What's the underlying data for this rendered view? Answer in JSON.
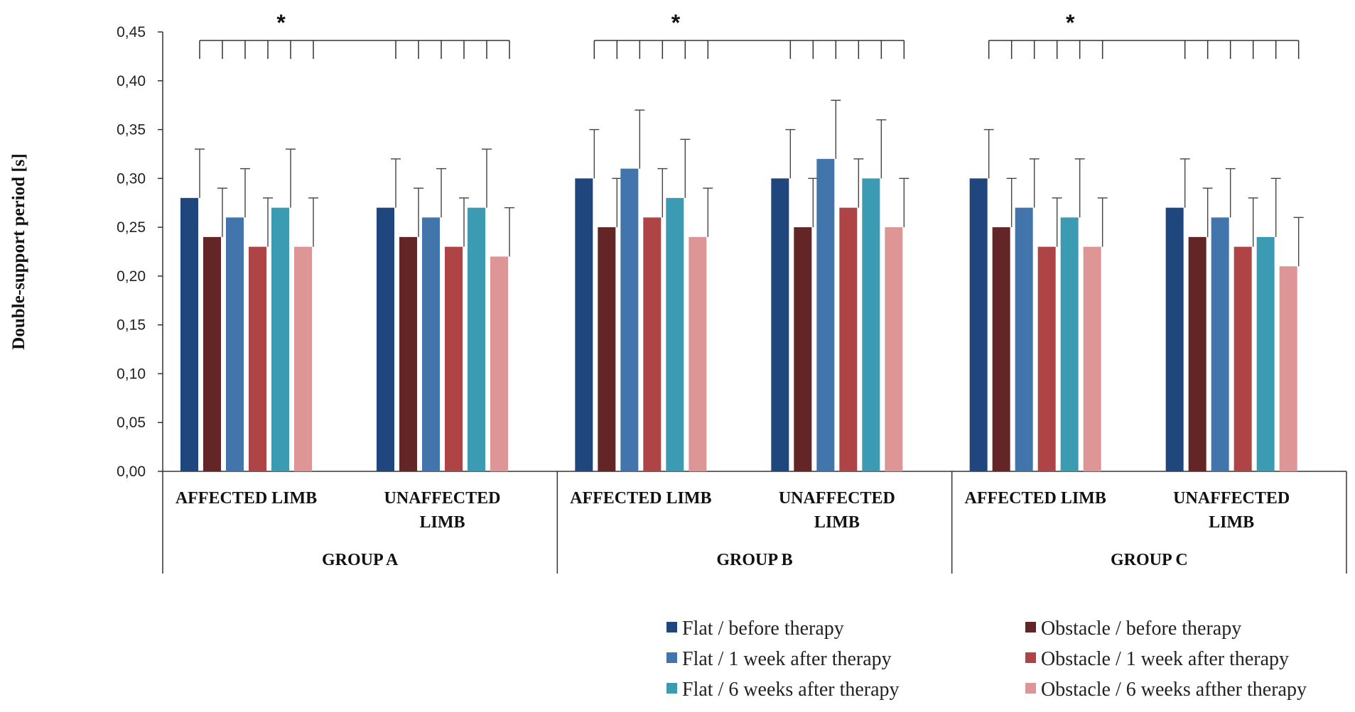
{
  "chart_data": {
    "type": "bar",
    "title": "",
    "xlabel": "",
    "ylabel": "Double-support period  [s]",
    "ylim": [
      0,
      0.45
    ],
    "yticks": [
      "0,00",
      "0,05",
      "0,10",
      "0,15",
      "0,20",
      "0,25",
      "0,30",
      "0,35",
      "0,40",
      "0,45"
    ],
    "grid": false,
    "legend_position": "bottom-right",
    "groups": [
      {
        "label": "GROUP   A",
        "significance": "*",
        "subgroups": [
          {
            "label": [
              "AFFECTED  LIMB"
            ],
            "values": [
              0.28,
              0.24,
              0.26,
              0.23,
              0.27,
              0.23
            ],
            "errors": [
              0.05,
              0.05,
              0.05,
              0.05,
              0.06,
              0.05
            ]
          },
          {
            "label": [
              "UNAFFECTED",
              "LIMB"
            ],
            "values": [
              0.27,
              0.24,
              0.26,
              0.23,
              0.27,
              0.22
            ],
            "errors": [
              0.05,
              0.05,
              0.05,
              0.05,
              0.06,
              0.05
            ]
          }
        ]
      },
      {
        "label": "GROUP   B",
        "significance": "*",
        "subgroups": [
          {
            "label": [
              "AFFECTED  LIMB"
            ],
            "values": [
              0.3,
              0.25,
              0.31,
              0.26,
              0.28,
              0.24
            ],
            "errors": [
              0.05,
              0.05,
              0.06,
              0.05,
              0.06,
              0.05
            ]
          },
          {
            "label": [
              "UNAFFECTED",
              "LIMB"
            ],
            "values": [
              0.3,
              0.25,
              0.32,
              0.27,
              0.3,
              0.25
            ],
            "errors": [
              0.05,
              0.05,
              0.06,
              0.05,
              0.06,
              0.05
            ]
          }
        ]
      },
      {
        "label": "GROUP   C",
        "significance": "*",
        "subgroups": [
          {
            "label": [
              "AFFECTED  LIMB"
            ],
            "values": [
              0.3,
              0.25,
              0.27,
              0.23,
              0.26,
              0.23
            ],
            "errors": [
              0.05,
              0.05,
              0.05,
              0.05,
              0.06,
              0.05
            ]
          },
          {
            "label": [
              "UNAFFECTED",
              "LIMB"
            ],
            "values": [
              0.27,
              0.24,
              0.26,
              0.23,
              0.24,
              0.21
            ],
            "errors": [
              0.05,
              0.05,
              0.05,
              0.05,
              0.06,
              0.05
            ]
          }
        ]
      }
    ],
    "series": [
      {
        "name": "Flat / before therapy",
        "color": "#1f477e"
      },
      {
        "name": "Obstacle / before therapy",
        "color": "#632526"
      },
      {
        "name": "Flat / 1 week after therapy",
        "color": "#4375ad"
      },
      {
        "name": "Obstacle / 1 week after therapy",
        "color": "#ae4446"
      },
      {
        "name": "Flat / 6 weeks after therapy",
        "color": "#3a9bb2"
      },
      {
        "name": "Obstacle / 6 weeks afther therapy",
        "color": "#de9595"
      }
    ]
  }
}
